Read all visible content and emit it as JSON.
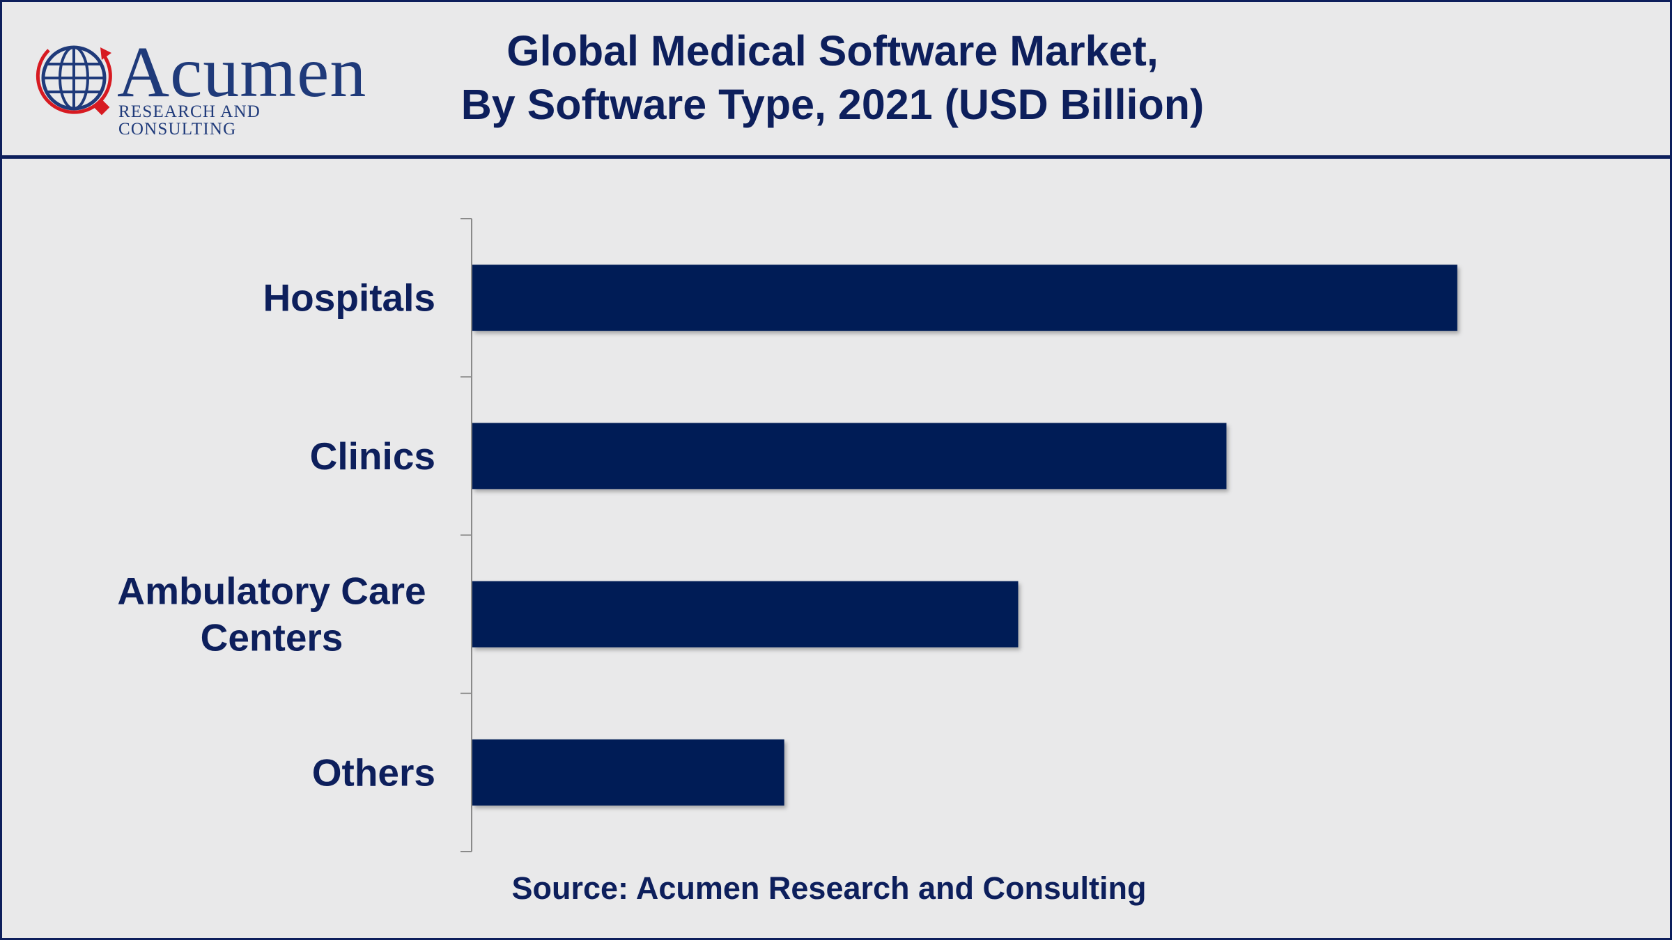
{
  "header": {
    "logo": {
      "name": "Acumen",
      "tagline": "RESEARCH AND CONSULTING"
    },
    "title_line1": "Global Medical Software Market,",
    "title_line2": "By Software Type, 2021 (USD Billion)"
  },
  "colors": {
    "bar": "#011d57",
    "text": "#0d1f5c",
    "axis": "#8a8a8a",
    "logo_accent": "#d71a21"
  },
  "chart_data": {
    "type": "bar",
    "orientation": "horizontal",
    "title": "Global Medical Software Market, By Software Type, 2021 (USD Billion)",
    "categories": [
      "Hospitals",
      "Clinics",
      "Ambulatory Care Centers",
      "Others"
    ],
    "category_lines": [
      [
        "Hospitals"
      ],
      [
        "Clinics"
      ],
      [
        "Ambulatory Care",
        "Centers"
      ],
      [
        "Others"
      ]
    ],
    "values": [
      9.6,
      7.35,
      5.32,
      3.04
    ],
    "xlim": [
      0,
      11
    ],
    "xlabel": "",
    "ylabel": "",
    "grid": false,
    "legend": "none"
  },
  "footer": {
    "source": "Source: Acumen Research and Consulting"
  }
}
